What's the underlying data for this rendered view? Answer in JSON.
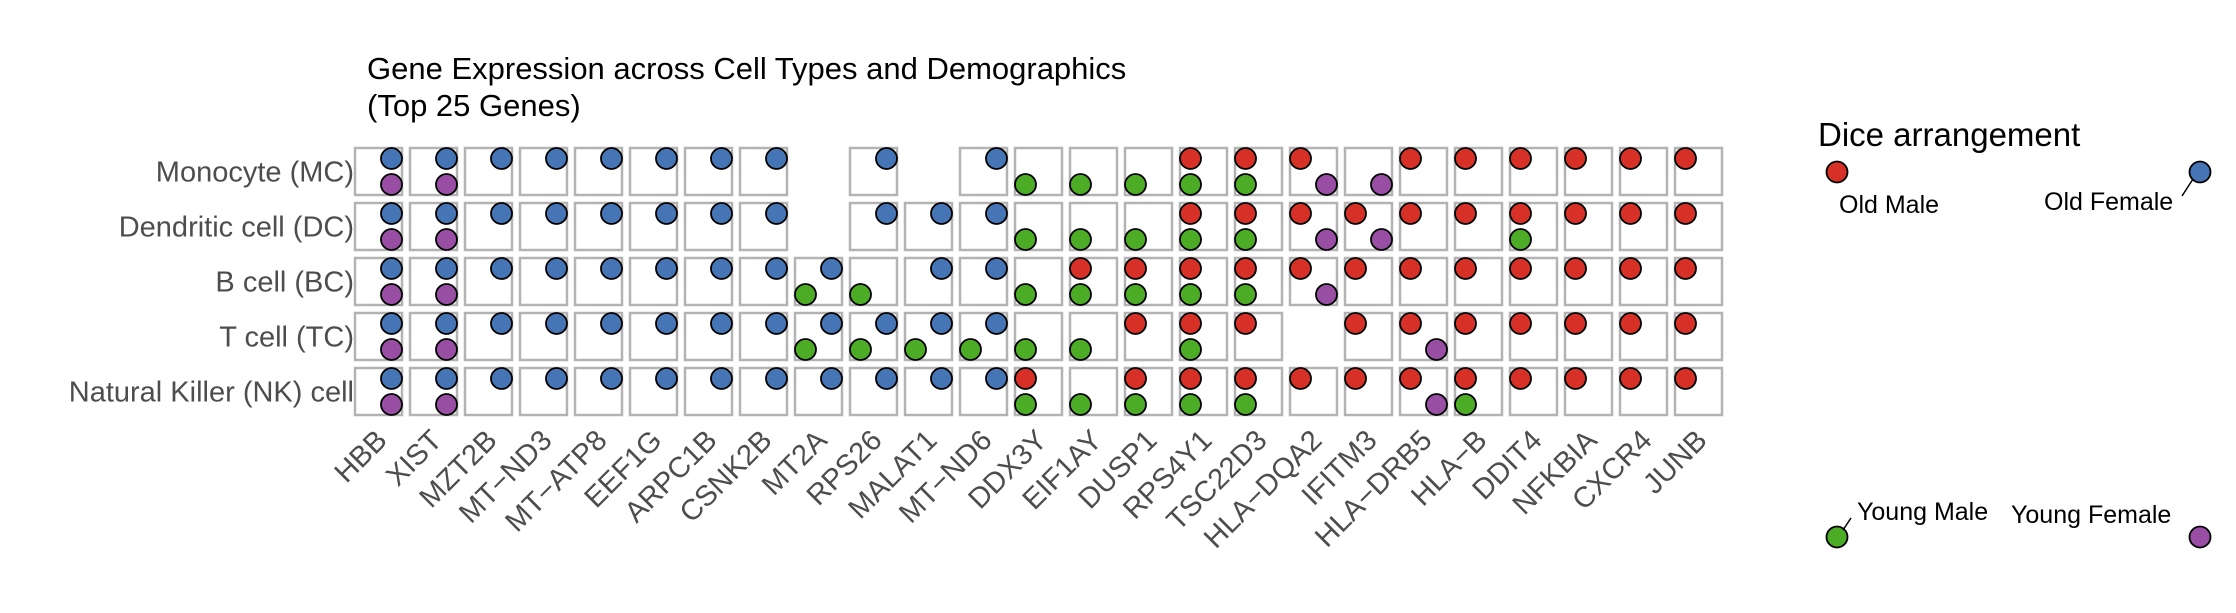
{
  "chart_data": {
    "type": "dot-matrix",
    "title": [
      "Gene Expression across Cell Types and Demographics",
      "(Top 25 Genes)"
    ],
    "rows": [
      "Monocyte (MC)",
      "Dendritic cell (DC)",
      "B cell (BC)",
      "T cell (TC)",
      "Natural Killer (NK) cell"
    ],
    "columns": [
      "HBB",
      "XIST",
      "MZT2B",
      "MT−ND3",
      "MT−ATP8",
      "EEF1G",
      "ARPC1B",
      "CSNK2B",
      "MT2A",
      "RPS26",
      "MALAT1",
      "MT−ND6",
      "DDX3Y",
      "EIF1AY",
      "DUSP1",
      "RPS4Y1",
      "TSC22D3",
      "HLA−DQA2",
      "IFITM3",
      "HLA−DRB5",
      "HLA−B",
      "DDIT4",
      "NFKBIA",
      "CXCR4",
      "JUNB"
    ],
    "groups": {
      "OM": {
        "name": "Old Male",
        "color": "#d73027"
      },
      "OF": {
        "name": "Old Female",
        "color": "#4575b4"
      },
      "YM": {
        "name": "Young Male",
        "color": "#4dac26"
      },
      "YF": {
        "name": "Young Female",
        "color": "#984ea3"
      }
    },
    "presence": [
      [
        [
          "OF",
          "YF"
        ],
        [
          "OF",
          "YF"
        ],
        [
          "OF"
        ],
        [
          "OF"
        ],
        [
          "OF"
        ],
        [
          "OF"
        ],
        [
          "OF"
        ],
        [
          "OF"
        ],
        [],
        [
          "OF"
        ],
        [],
        [
          "OF"
        ],
        [
          "YM"
        ],
        [
          "YM"
        ],
        [
          "YM"
        ],
        [
          "OM",
          "YM"
        ],
        [
          "OM",
          "YM"
        ],
        [
          "OM",
          "YF"
        ],
        [
          "YF"
        ],
        [
          "OM"
        ],
        [
          "OM"
        ],
        [
          "OM"
        ],
        [
          "OM"
        ],
        [
          "OM"
        ],
        [
          "OM"
        ]
      ],
      [
        [
          "OF",
          "YF"
        ],
        [
          "OF",
          "YF"
        ],
        [
          "OF"
        ],
        [
          "OF"
        ],
        [
          "OF"
        ],
        [
          "OF"
        ],
        [
          "OF"
        ],
        [
          "OF"
        ],
        [],
        [
          "OF"
        ],
        [
          "OF"
        ],
        [
          "OF"
        ],
        [
          "YM"
        ],
        [
          "YM"
        ],
        [
          "YM"
        ],
        [
          "OM",
          "YM"
        ],
        [
          "OM",
          "YM"
        ],
        [
          "OM",
          "YF"
        ],
        [
          "OM",
          "YF"
        ],
        [
          "OM"
        ],
        [
          "OM"
        ],
        [
          "OM",
          "YM"
        ],
        [
          "OM"
        ],
        [
          "OM"
        ],
        [
          "OM"
        ]
      ],
      [
        [
          "OF",
          "YF"
        ],
        [
          "OF",
          "YF"
        ],
        [
          "OF"
        ],
        [
          "OF"
        ],
        [
          "OF"
        ],
        [
          "OF"
        ],
        [
          "OF"
        ],
        [
          "OF"
        ],
        [
          "OF",
          "YM"
        ],
        [
          "YM"
        ],
        [
          "OF"
        ],
        [
          "OF"
        ],
        [
          "YM"
        ],
        [
          "OM",
          "YM"
        ],
        [
          "OM",
          "YM"
        ],
        [
          "OM",
          "YM"
        ],
        [
          "OM",
          "YM"
        ],
        [
          "OM",
          "YF"
        ],
        [
          "OM"
        ],
        [
          "OM"
        ],
        [
          "OM"
        ],
        [
          "OM"
        ],
        [
          "OM"
        ],
        [
          "OM"
        ],
        [
          "OM"
        ]
      ],
      [
        [
          "OF",
          "YF"
        ],
        [
          "OF",
          "YF"
        ],
        [
          "OF"
        ],
        [
          "OF"
        ],
        [
          "OF"
        ],
        [
          "OF"
        ],
        [
          "OF"
        ],
        [
          "OF"
        ],
        [
          "OF",
          "YM"
        ],
        [
          "OF",
          "YM"
        ],
        [
          "OF",
          "YM"
        ],
        [
          "OF",
          "YM"
        ],
        [
          "YM"
        ],
        [
          "YM"
        ],
        [
          "OM"
        ],
        [
          "OM",
          "YM"
        ],
        [
          "OM"
        ],
        [],
        [
          "OM"
        ],
        [
          "OM",
          "YF"
        ],
        [
          "OM"
        ],
        [
          "OM"
        ],
        [
          "OM"
        ],
        [
          "OM"
        ],
        [
          "OM"
        ]
      ],
      [
        [
          "OF",
          "YF"
        ],
        [
          "OF",
          "YF"
        ],
        [
          "OF"
        ],
        [
          "OF"
        ],
        [
          "OF"
        ],
        [
          "OF"
        ],
        [
          "OF"
        ],
        [
          "OF"
        ],
        [
          "OF"
        ],
        [
          "OF"
        ],
        [
          "OF"
        ],
        [
          "OF"
        ],
        [
          "OM",
          "YM"
        ],
        [
          "YM"
        ],
        [
          "OM",
          "YM"
        ],
        [
          "OM",
          "YM"
        ],
        [
          "OM",
          "YM"
        ],
        [
          "OM"
        ],
        [
          "OM"
        ],
        [
          "OM",
          "YF"
        ],
        [
          "OM",
          "YM"
        ],
        [
          "OM"
        ],
        [
          "OM"
        ],
        [
          "OM"
        ],
        [
          "OM"
        ]
      ]
    ]
  },
  "legend": {
    "title": "Dice arrangement",
    "old_male": "Old Male",
    "old_female": "Old Female",
    "young_male": "Young Male",
    "young_female": "Young Female"
  }
}
